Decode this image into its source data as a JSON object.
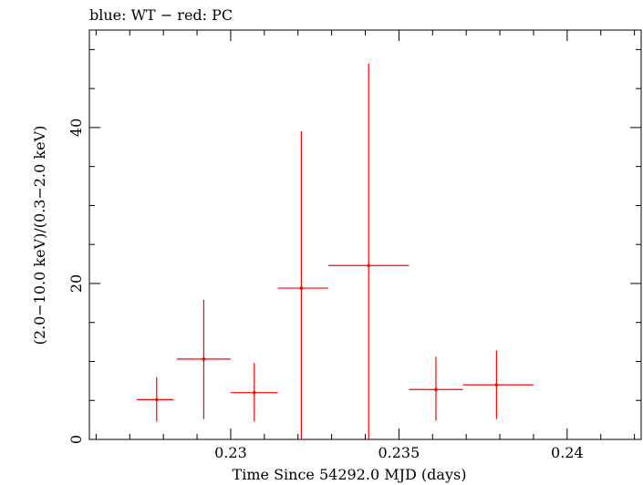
{
  "chart_data": {
    "type": "scatter",
    "title": "blue: WT − red: PC",
    "xlabel": "Time Since 54292.0 MJD (days)",
    "ylabel": "(2.0−10.0 keV)/(0.3−2.0 keV)",
    "xlim": [
      0.2258,
      0.2422
    ],
    "ylim": [
      0,
      52.5
    ],
    "x_ticks": [
      {
        "value": 0.23,
        "label": "0.23"
      },
      {
        "value": 0.235,
        "label": "0.235"
      },
      {
        "value": 0.24,
        "label": "0.24"
      }
    ],
    "y_ticks": [
      {
        "value": 0,
        "label": "0"
      },
      {
        "value": 20,
        "label": "20"
      },
      {
        "value": 40,
        "label": "40"
      }
    ],
    "grid": false,
    "series": [
      {
        "name": "PC",
        "color": "#ff0000",
        "points": [
          {
            "x": 0.2278,
            "xlo": 0.2272,
            "xhi": 0.2283,
            "y": 5.1,
            "ylo": 2.3,
            "yhi": 8.0
          },
          {
            "x": 0.2292,
            "xlo": 0.2284,
            "xhi": 0.23,
            "y": 10.3,
            "ylo": 2.6,
            "yhi": 17.9
          },
          {
            "x": 0.2307,
            "xlo": 0.23,
            "xhi": 0.2314,
            "y": 6.0,
            "ylo": 2.3,
            "yhi": 9.8
          },
          {
            "x": 0.2321,
            "xlo": 0.2314,
            "xhi": 0.2329,
            "y": 19.4,
            "ylo": 0.0,
            "yhi": 39.5
          },
          {
            "x": 0.2341,
            "xlo": 0.2329,
            "xhi": 0.2353,
            "y": 22.3,
            "ylo": 0.0,
            "yhi": 48.2
          },
          {
            "x": 0.2361,
            "xlo": 0.2353,
            "xhi": 0.2369,
            "y": 6.4,
            "ylo": 2.4,
            "yhi": 10.6
          },
          {
            "x": 0.2379,
            "xlo": 0.2369,
            "xhi": 0.239,
            "y": 7.0,
            "ylo": 2.6,
            "yhi": 11.4
          }
        ]
      }
    ]
  }
}
